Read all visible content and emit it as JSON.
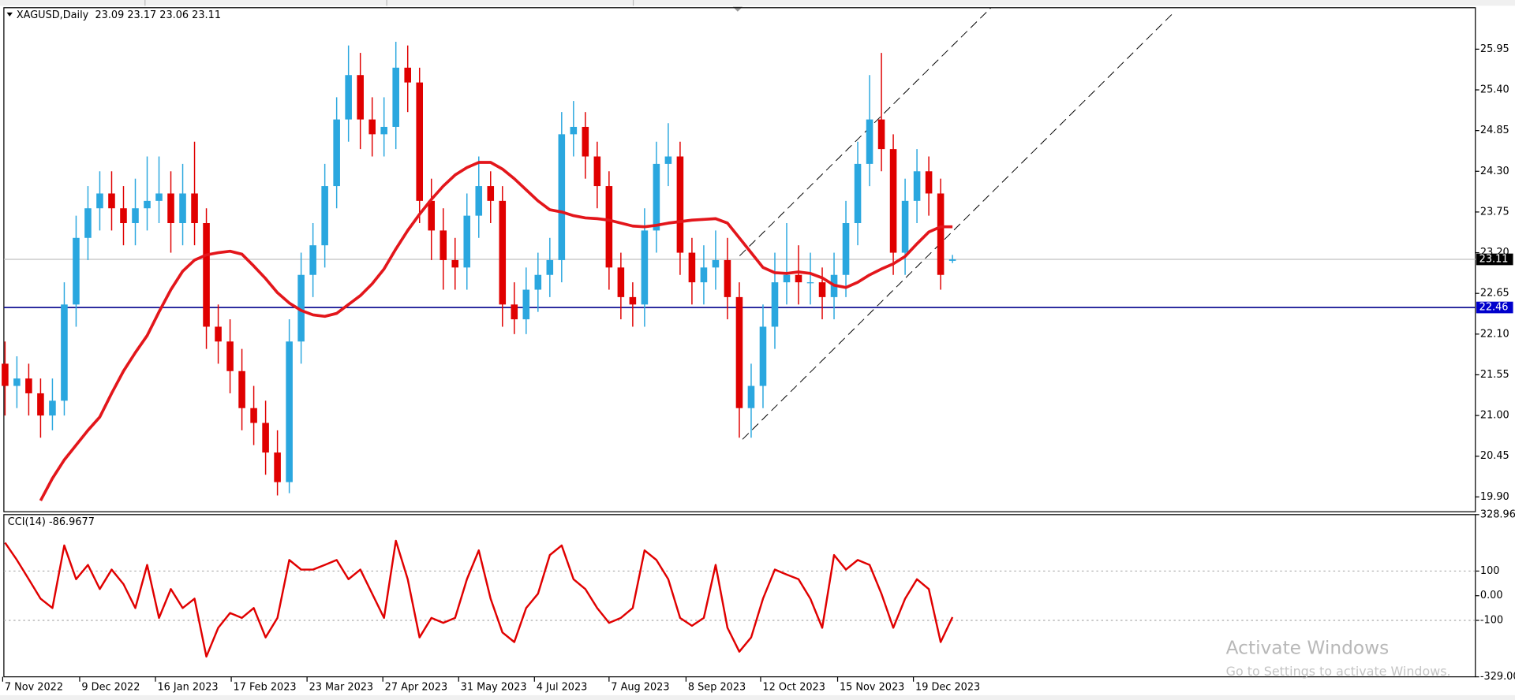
{
  "chart_data": [
    {
      "type": "candlestick",
      "title": "XAGUSD,Daily  23.09 23.17 23.06 23.11",
      "up_color": "#2aa7df",
      "down_color": "#e00000",
      "open": [
        21.7,
        21.4,
        21.5,
        21.3,
        21.0,
        21.2,
        22.5,
        23.4,
        23.8,
        24.0,
        23.8,
        23.6,
        23.8,
        23.9,
        24.0,
        23.6,
        24.0,
        23.6,
        22.2,
        22.0,
        21.6,
        21.1,
        20.9,
        20.5,
        20.1,
        22.0,
        22.9,
        23.3,
        24.1,
        25.0,
        25.6,
        25.0,
        24.8,
        24.9,
        25.7,
        25.5,
        23.9,
        23.5,
        23.1,
        23.0,
        23.7,
        24.1,
        23.9,
        22.5,
        22.3,
        22.7,
        22.9,
        23.1,
        24.8,
        24.9,
        24.5,
        24.1,
        23.0,
        22.6,
        22.5,
        23.5,
        24.4,
        24.5,
        23.2,
        22.8,
        23.0,
        23.1,
        22.6,
        21.1,
        21.4,
        22.2,
        22.8,
        22.9,
        22.8,
        22.8,
        22.6,
        22.9,
        23.6,
        24.4,
        25.0,
        24.6,
        23.2,
        23.9,
        24.3,
        24.0,
        23.09
      ],
      "high": [
        22.0,
        21.8,
        21.7,
        21.5,
        21.5,
        22.8,
        23.7,
        24.1,
        24.3,
        24.3,
        24.1,
        24.2,
        24.5,
        24.5,
        24.3,
        24.4,
        24.7,
        23.8,
        22.5,
        22.3,
        21.9,
        21.4,
        21.2,
        20.8,
        22.3,
        23.2,
        23.6,
        24.4,
        25.3,
        26.0,
        25.9,
        25.3,
        25.3,
        26.05,
        26.0,
        25.7,
        24.2,
        23.8,
        23.4,
        24.0,
        24.5,
        24.3,
        24.1,
        22.8,
        23.0,
        23.2,
        23.4,
        25.1,
        25.25,
        25.1,
        24.7,
        24.3,
        23.2,
        22.8,
        23.8,
        24.7,
        24.95,
        24.7,
        23.4,
        23.3,
        23.5,
        23.4,
        22.8,
        21.7,
        22.5,
        23.2,
        23.6,
        23.3,
        23.2,
        23.0,
        23.2,
        23.9,
        24.7,
        25.6,
        25.9,
        24.8,
        24.2,
        24.6,
        24.5,
        24.2,
        23.17
      ],
      "low": [
        21.0,
        21.1,
        21.0,
        20.7,
        20.8,
        21.0,
        22.2,
        23.1,
        23.5,
        23.5,
        23.3,
        23.3,
        23.5,
        23.6,
        23.2,
        23.3,
        23.3,
        21.9,
        21.7,
        21.3,
        20.8,
        20.6,
        20.2,
        19.92,
        19.95,
        21.7,
        22.6,
        23.0,
        23.8,
        24.7,
        24.6,
        24.5,
        24.5,
        24.6,
        25.1,
        23.6,
        23.1,
        22.7,
        22.7,
        22.7,
        23.4,
        23.6,
        22.2,
        22.1,
        22.1,
        22.4,
        22.6,
        22.8,
        24.5,
        24.2,
        23.8,
        22.7,
        22.3,
        22.2,
        22.2,
        23.2,
        24.1,
        22.9,
        22.5,
        22.5,
        22.7,
        22.3,
        20.7,
        20.7,
        21.1,
        21.9,
        22.5,
        22.5,
        22.5,
        22.3,
        22.3,
        22.6,
        23.3,
        24.1,
        24.3,
        22.9,
        22.9,
        23.6,
        23.7,
        22.7,
        23.06
      ],
      "close": [
        21.4,
        21.5,
        21.3,
        21.0,
        21.2,
        22.5,
        23.4,
        23.8,
        24.0,
        23.8,
        23.6,
        23.8,
        23.9,
        24.0,
        23.6,
        24.0,
        23.6,
        22.2,
        22.0,
        21.6,
        21.1,
        20.9,
        20.5,
        20.1,
        22.0,
        22.9,
        23.3,
        24.1,
        25.0,
        25.6,
        25.0,
        24.8,
        24.9,
        25.7,
        25.5,
        23.9,
        23.5,
        23.1,
        23.0,
        23.7,
        24.1,
        23.9,
        22.5,
        22.3,
        22.7,
        22.9,
        23.1,
        24.8,
        24.9,
        24.5,
        24.1,
        23.0,
        22.6,
        22.5,
        23.5,
        24.4,
        24.5,
        23.2,
        22.8,
        23.0,
        23.1,
        22.6,
        21.1,
        21.4,
        22.2,
        22.8,
        22.9,
        22.8,
        22.8,
        22.6,
        22.9,
        23.6,
        24.4,
        25.0,
        24.6,
        23.2,
        23.9,
        24.3,
        24.0,
        22.9,
        23.11
      ],
      "overlay": {
        "color": "#e3161b",
        "values": [
          null,
          null,
          null,
          19.85,
          20.15,
          20.4,
          20.6,
          20.8,
          20.98,
          21.3,
          21.6,
          21.85,
          22.08,
          22.4,
          22.7,
          22.95,
          23.1,
          23.17,
          23.2,
          23.22,
          23.18,
          23.02,
          22.85,
          22.66,
          22.52,
          22.42,
          22.36,
          22.34,
          22.38,
          22.5,
          22.62,
          22.78,
          22.98,
          23.25,
          23.5,
          23.72,
          23.92,
          24.1,
          24.25,
          24.35,
          24.42,
          24.42,
          24.33,
          24.2,
          24.05,
          23.9,
          23.78,
          23.75,
          23.7,
          23.67,
          23.66,
          23.64,
          23.6,
          23.56,
          23.55,
          23.57,
          23.6,
          23.62,
          23.64,
          23.65,
          23.66,
          23.6,
          23.4,
          23.2,
          23.0,
          22.93,
          22.92,
          22.94,
          22.92,
          22.86,
          22.76,
          22.73,
          22.8,
          22.9,
          22.98,
          23.05,
          23.15,
          23.32,
          23.48,
          23.55,
          23.55
        ]
      },
      "hlines": [
        {
          "value": 23.11,
          "color": "#c0c0c0",
          "label_color": "#000000"
        },
        {
          "value": 22.46,
          "color": "#00008b",
          "label_color": "#0000cc"
        }
      ],
      "xlim": [
        -0.1,
        124.15
      ],
      "ylim": [
        19.7,
        26.51
      ],
      "yticks": [
        25.95,
        {
          "value": 25.4,
          "label": "25.40"
        },
        24.85,
        {
          "value": 24.3,
          "label": "24.30"
        },
        23.75,
        {
          "value": 23.2,
          "label": "23.20"
        },
        22.65,
        {
          "value": 22.1,
          "label": "22.10"
        },
        21.55,
        {
          "value": 21.0,
          "label": "21.00"
        },
        20.45,
        {
          "value": 19.9,
          "label": "19.90"
        }
      ]
    },
    {
      "type": "line",
      "title": "CCI(14) -86.9677",
      "color": "#e00000",
      "values": [
        215,
        145,
        67,
        -12,
        -50,
        204,
        67,
        125,
        27,
        106,
        47,
        -50,
        125,
        -90,
        27,
        -50,
        -12,
        -247,
        -130,
        -70,
        -90,
        -50,
        -169,
        -90,
        145,
        106,
        106,
        125,
        145,
        67,
        106,
        8,
        -90,
        223,
        67,
        -169,
        -90,
        -110,
        -90,
        67,
        184,
        -12,
        -149,
        -188,
        -50,
        8,
        165,
        204,
        67,
        27,
        -50,
        -110,
        -90,
        -50,
        184,
        145,
        67,
        -90,
        -122,
        -90,
        125,
        -130,
        -227,
        -169,
        -12,
        106,
        86,
        67,
        -12,
        -130,
        165,
        106,
        145,
        125,
        8,
        -130,
        -12,
        67,
        27,
        -188,
        -86.9677
      ],
      "levels": [
        100,
        -100
      ],
      "xlim": [
        -0.1,
        124.15
      ],
      "ylim": [
        -329,
        328.964
      ],
      "yticks": [
        328.964,
        100,
        {
          "value": 0,
          "label": "0.00"
        },
        -100,
        {
          "value": -329,
          "label": "-329.000"
        }
      ],
      "xticks": [
        {
          "value": -0.2,
          "label": "7 Nov 2022"
        },
        {
          "value": 6.3,
          "label": "9 Dec 2022"
        },
        {
          "value": 12.7,
          "label": "16 Jan 2023"
        },
        {
          "value": 19.1,
          "label": "17 Feb 2023"
        },
        {
          "value": 25.5,
          "label": "23 Mar 2023"
        },
        {
          "value": 31.9,
          "label": "27 Apr 2023"
        },
        {
          "value": 38.3,
          "label": "31 May 2023"
        },
        {
          "value": 44.7,
          "label": "4 Jul 2023"
        },
        {
          "value": 51.0,
          "label": "7 Aug 2023"
        },
        {
          "value": 57.5,
          "label": "8 Sep 2023"
        },
        {
          "value": 63.8,
          "label": "12 Oct 2023"
        },
        {
          "value": 70.3,
          "label": "15 Nov 2023"
        },
        {
          "value": 76.7,
          "label": "19 Dec 2023"
        }
      ]
    }
  ],
  "watermark": {
    "title": "Activate Windows",
    "subtitle": "Go to Settings to activate Windows."
  }
}
